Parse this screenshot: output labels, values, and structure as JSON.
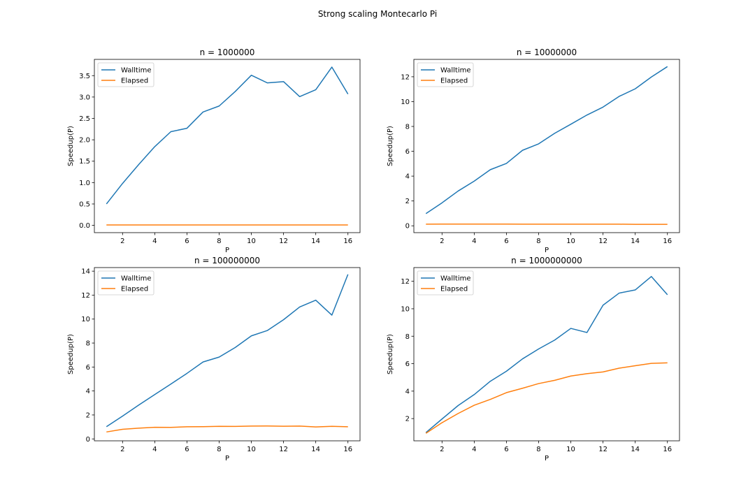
{
  "figure": {
    "title": "Strong scaling Montecarlo Pi"
  },
  "colors": {
    "walltime": "#1f77b4",
    "elapsed": "#ff7f0e"
  },
  "chart_data": [
    {
      "type": "line",
      "title": "n = 1000000",
      "xlabel": "P",
      "ylabel": "Speedup(P)",
      "xlim": [
        0.25,
        16.75
      ],
      "ylim": [
        -0.17,
        3.88
      ],
      "xticks": [
        2,
        4,
        6,
        8,
        10,
        12,
        14,
        16
      ],
      "yticks": [
        0.0,
        0.5,
        1.0,
        1.5,
        2.0,
        2.5,
        3.0,
        3.5
      ],
      "ytick_labels": [
        "0.0",
        "0.5",
        "1.0",
        "1.5",
        "2.0",
        "2.5",
        "3.0",
        "3.5"
      ],
      "legend_position": "upper-left",
      "x": [
        1,
        2,
        3,
        4,
        5,
        6,
        7,
        8,
        9,
        10,
        11,
        12,
        13,
        14,
        15,
        16
      ],
      "series": [
        {
          "name": "Walltime",
          "values": [
            0.5,
            0.98,
            1.42,
            1.84,
            2.19,
            2.27,
            2.65,
            2.79,
            3.13,
            3.51,
            3.33,
            3.36,
            3.01,
            3.17,
            3.7,
            3.07
          ]
        },
        {
          "name": "Elapsed",
          "values": [
            0.01,
            0.01,
            0.01,
            0.01,
            0.01,
            0.01,
            0.01,
            0.01,
            0.01,
            0.01,
            0.01,
            0.01,
            0.01,
            0.01,
            0.01,
            0.01
          ]
        }
      ]
    },
    {
      "type": "line",
      "title": "n = 10000000",
      "xlabel": "P",
      "ylabel": "Speedup(P)",
      "xlim": [
        0.25,
        16.75
      ],
      "ylim": [
        -0.55,
        13.4
      ],
      "xticks": [
        2,
        4,
        6,
        8,
        10,
        12,
        14,
        16
      ],
      "yticks": [
        0,
        2,
        4,
        6,
        8,
        10,
        12
      ],
      "ytick_labels": [
        "0",
        "2",
        "4",
        "6",
        "8",
        "10",
        "12"
      ],
      "legend_position": "upper-left",
      "x": [
        1,
        2,
        3,
        4,
        5,
        6,
        7,
        8,
        9,
        10,
        11,
        12,
        13,
        14,
        15,
        16
      ],
      "series": [
        {
          "name": "Walltime",
          "values": [
            0.98,
            1.85,
            2.8,
            3.6,
            4.52,
            5.02,
            6.08,
            6.6,
            7.45,
            8.18,
            8.92,
            9.56,
            10.42,
            11.03,
            11.98,
            12.82
          ]
        },
        {
          "name": "Elapsed",
          "values": [
            0.13,
            0.14,
            0.14,
            0.14,
            0.14,
            0.14,
            0.13,
            0.13,
            0.13,
            0.13,
            0.13,
            0.13,
            0.13,
            0.12,
            0.12,
            0.12
          ]
        }
      ]
    },
    {
      "type": "line",
      "title": "n = 100000000",
      "xlabel": "P",
      "ylabel": "Speedup(P)",
      "xlim": [
        0.25,
        16.75
      ],
      "ylim": [
        -0.16,
        14.3
      ],
      "xticks": [
        2,
        4,
        6,
        8,
        10,
        12,
        14,
        16
      ],
      "yticks": [
        0,
        2,
        4,
        6,
        8,
        10,
        12,
        14
      ],
      "ytick_labels": [
        "0",
        "2",
        "4",
        "6",
        "8",
        "10",
        "12",
        "14"
      ],
      "legend_position": "upper-left",
      "x": [
        1,
        2,
        3,
        4,
        5,
        6,
        7,
        8,
        9,
        10,
        11,
        12,
        13,
        14,
        15,
        16
      ],
      "series": [
        {
          "name": "Walltime",
          "values": [
            1.02,
            1.9,
            2.82,
            3.7,
            4.58,
            5.47,
            6.42,
            6.83,
            7.63,
            8.6,
            9.05,
            9.95,
            11.01,
            11.58,
            10.33,
            13.73
          ]
        },
        {
          "name": "Elapsed",
          "values": [
            0.58,
            0.8,
            0.9,
            0.97,
            0.96,
            1.01,
            1.02,
            1.05,
            1.04,
            1.07,
            1.08,
            1.06,
            1.07,
            1.0,
            1.05,
            1.01
          ]
        }
      ]
    },
    {
      "type": "line",
      "title": "n = 1000000000",
      "xlabel": "P",
      "ylabel": "Speedup(P)",
      "xlim": [
        0.25,
        16.75
      ],
      "ylim": [
        0.38,
        13.0
      ],
      "xticks": [
        2,
        4,
        6,
        8,
        10,
        12,
        14,
        16
      ],
      "yticks": [
        2,
        4,
        6,
        8,
        10,
        12
      ],
      "ytick_labels": [
        "2",
        "4",
        "6",
        "8",
        "10",
        "12"
      ],
      "legend_position": "upper-left",
      "x": [
        1,
        2,
        3,
        4,
        5,
        6,
        7,
        8,
        9,
        10,
        11,
        12,
        13,
        14,
        15,
        16
      ],
      "series": [
        {
          "name": "Walltime",
          "values": [
            0.98,
            1.97,
            2.95,
            3.75,
            4.72,
            5.45,
            6.35,
            7.07,
            7.72,
            8.57,
            8.27,
            10.26,
            11.14,
            11.37,
            12.35,
            11.02
          ]
        },
        {
          "name": "Elapsed",
          "values": [
            0.93,
            1.7,
            2.37,
            2.97,
            3.4,
            3.89,
            4.21,
            4.55,
            4.79,
            5.1,
            5.27,
            5.4,
            5.67,
            5.85,
            6.02,
            6.06
          ]
        }
      ]
    }
  ]
}
